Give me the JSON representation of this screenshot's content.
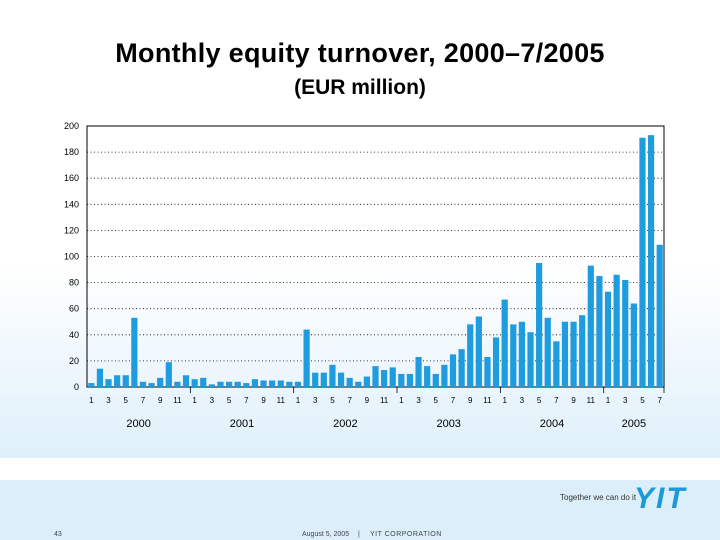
{
  "footer": {
    "page_number": "43",
    "date": "August 5, 2005",
    "separator": "|",
    "corporation": "YIT CORPORATION"
  },
  "branding": {
    "tagline": "Together we can do it",
    "logo_text": "YIT",
    "logo_color": "#1a9ad6"
  },
  "chart_data": {
    "type": "bar",
    "title": "Monthly equity turnover, 2000–7/2005",
    "subtitle": "(EUR million)",
    "bar_color": "#1f9be0",
    "ylim": [
      0,
      200
    ],
    "yticks": [
      0,
      20,
      40,
      60,
      80,
      100,
      120,
      140,
      160,
      180,
      200
    ],
    "grid": "horizontal dotted",
    "month_tick_labels": [
      "1",
      "3",
      "5",
      "7",
      "9",
      "11"
    ],
    "years": [
      {
        "label": "2000",
        "months": 12
      },
      {
        "label": "2001",
        "months": 12
      },
      {
        "label": "2002",
        "months": 12
      },
      {
        "label": "2003",
        "months": 12
      },
      {
        "label": "2004",
        "months": 12
      },
      {
        "label": "2005",
        "months": 7
      }
    ],
    "values": [
      3,
      14,
      6,
      9,
      9,
      53,
      4,
      3,
      7,
      19,
      4,
      9,
      6,
      7,
      2,
      4,
      4,
      4,
      3,
      6,
      5,
      5,
      5,
      4,
      4,
      44,
      11,
      11,
      17,
      11,
      7,
      4,
      8,
      16,
      13,
      15,
      10,
      10,
      23,
      16,
      10,
      17,
      25,
      29,
      48,
      54,
      23,
      38,
      67,
      48,
      50,
      42,
      95,
      53,
      35,
      50,
      50,
      55,
      93,
      85,
      73,
      86,
      82,
      64,
      191,
      193,
      109
    ]
  }
}
